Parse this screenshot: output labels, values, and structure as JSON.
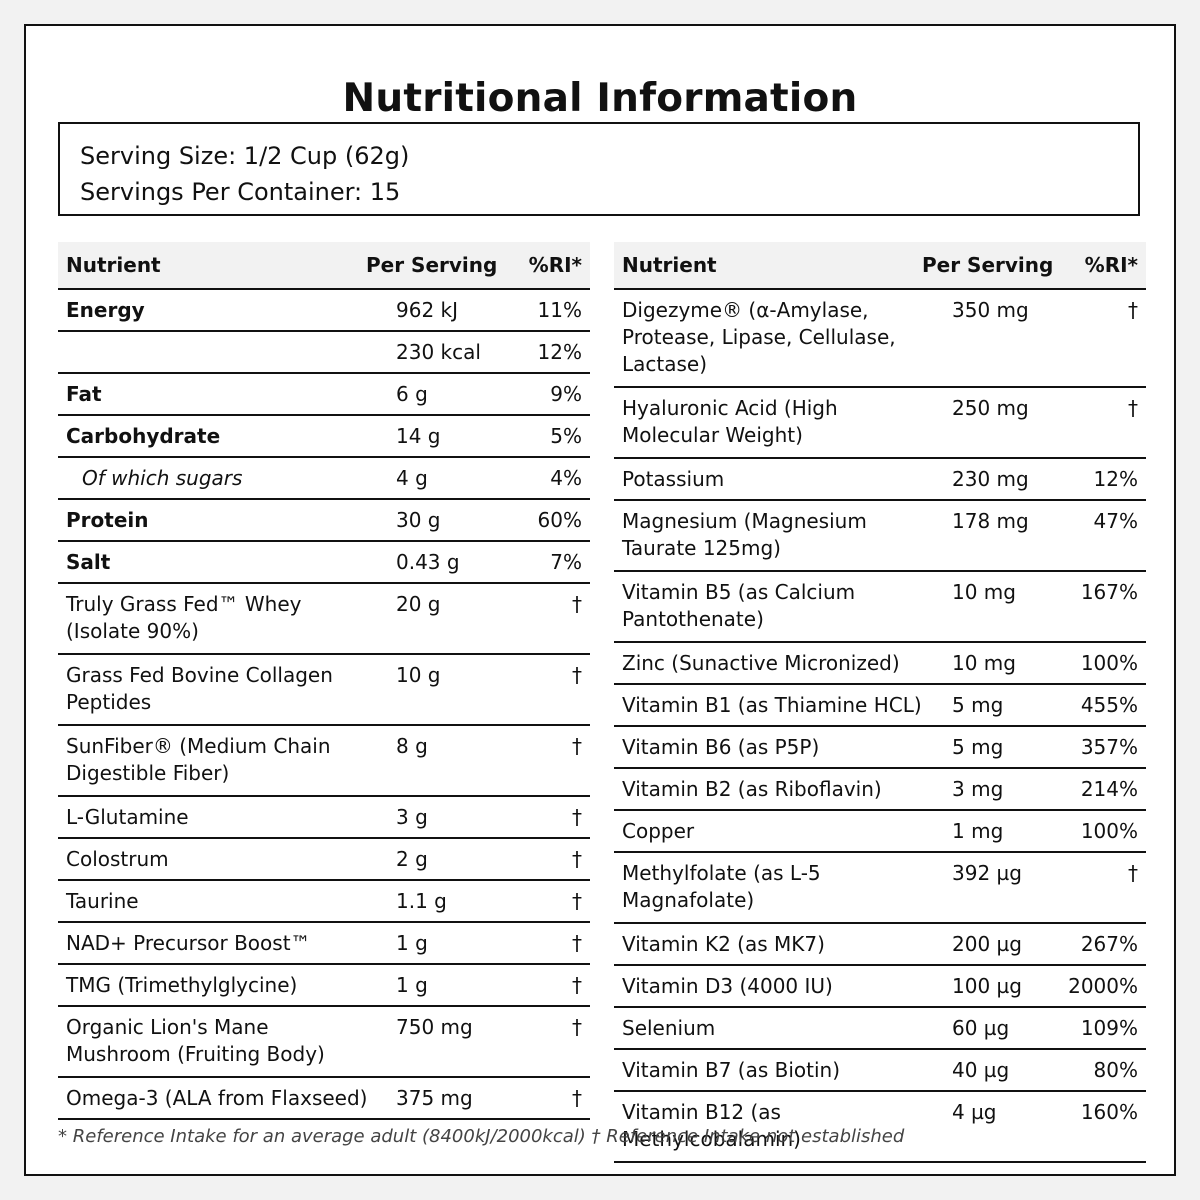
{
  "title": "Nutritional Information",
  "serving": {
    "size": "Serving Size: 1/2 Cup (62g)",
    "per_container": "Servings Per Container: 15"
  },
  "headers": {
    "nutrient": "Nutrient",
    "per_serving": "Per Serving",
    "ri": "%RI*"
  },
  "left_rows": [
    {
      "nutrient": "Energy",
      "per_serving": "962 kJ",
      "ri": "11%"
    },
    {
      "nutrient": "",
      "per_serving": "230 kcal",
      "ri": "12%"
    },
    {
      "nutrient": "Fat",
      "per_serving": "6 g",
      "ri": "9%"
    },
    {
      "nutrient": "Carbohydrate",
      "per_serving": "14 g",
      "ri": "5%"
    },
    {
      "nutrient": "Of which sugars",
      "per_serving": "4 g",
      "ri": "4%"
    },
    {
      "nutrient": "Protein",
      "per_serving": "30 g",
      "ri": "60%"
    },
    {
      "nutrient": "Salt",
      "per_serving": "0.43 g",
      "ri": "7%"
    },
    {
      "nutrient": "Truly Grass Fed™ Whey (Isolate 90%)",
      "per_serving": "20 g",
      "ri": "†"
    },
    {
      "nutrient": "Grass Fed Bovine Collagen Peptides",
      "per_serving": "10 g",
      "ri": "†"
    },
    {
      "nutrient": "SunFiber® (Medium Chain Digestible Fiber)",
      "per_serving": "8 g",
      "ri": "†"
    },
    {
      "nutrient": "L-Glutamine",
      "per_serving": "3 g",
      "ri": "†"
    },
    {
      "nutrient": "Colostrum",
      "per_serving": "2 g",
      "ri": "†"
    },
    {
      "nutrient": "Taurine",
      "per_serving": "1.1 g",
      "ri": "†"
    },
    {
      "nutrient": "NAD+ Precursor Boost™",
      "per_serving": "1 g",
      "ri": "†"
    },
    {
      "nutrient": "TMG (Trimethylglycine)",
      "per_serving": "1 g",
      "ri": "†"
    },
    {
      "nutrient": "Organic Lion's Mane Mushroom (Fruiting Body)",
      "per_serving": "750 mg",
      "ri": "†"
    },
    {
      "nutrient": "Omega-3 (ALA from Flaxseed)",
      "per_serving": "375 mg",
      "ri": "†"
    }
  ],
  "right_rows": [
    {
      "nutrient": "Digezyme® (α-Amylase, Protease, Lipase, Cellulase, Lactase)",
      "per_serving": "350 mg",
      "ri": "†"
    },
    {
      "nutrient": "Hyaluronic Acid (High Molecular Weight)",
      "per_serving": "250 mg",
      "ri": "†"
    },
    {
      "nutrient": "Potassium",
      "per_serving": "230 mg",
      "ri": "12%"
    },
    {
      "nutrient": "Magnesium (Magnesium Taurate 125mg)",
      "per_serving": "178 mg",
      "ri": "47%"
    },
    {
      "nutrient": "Vitamin B5 (as Calcium Pantothenate)",
      "per_serving": "10 mg",
      "ri": "167%"
    },
    {
      "nutrient": "Zinc (Sunactive Micronized)",
      "per_serving": "10 mg",
      "ri": "100%"
    },
    {
      "nutrient": "Vitamin B1 (as Thiamine HCL)",
      "per_serving": "5 mg",
      "ri": "455%"
    },
    {
      "nutrient": "Vitamin B6 (as P5P)",
      "per_serving": "5 mg",
      "ri": "357%"
    },
    {
      "nutrient": "Vitamin B2 (as Riboflavin)",
      "per_serving": "3 mg",
      "ri": "214%"
    },
    {
      "nutrient": "Copper",
      "per_serving": "1 mg",
      "ri": "100%"
    },
    {
      "nutrient": "Methylfolate (as L-5 Magnafolate)",
      "per_serving": "392 µg",
      "ri": "†"
    },
    {
      "nutrient": "Vitamin K2 (as MK7)",
      "per_serving": "200 µg",
      "ri": "267%"
    },
    {
      "nutrient": "Vitamin D3 (4000 IU)",
      "per_serving": "100 µg",
      "ri": "2000%"
    },
    {
      "nutrient": "Selenium",
      "per_serving": "60 µg",
      "ri": "109%"
    },
    {
      "nutrient": "Vitamin B7 (as Biotin)",
      "per_serving": "40 µg",
      "ri": "80%"
    },
    {
      "nutrient": "Vitamin B12 (as Methylcobalamin)",
      "per_serving": "4 µg",
      "ri": "160%"
    }
  ],
  "footnote": "* Reference Intake for an average adult (8400kJ/2000kcal) † Reference Intake not established"
}
